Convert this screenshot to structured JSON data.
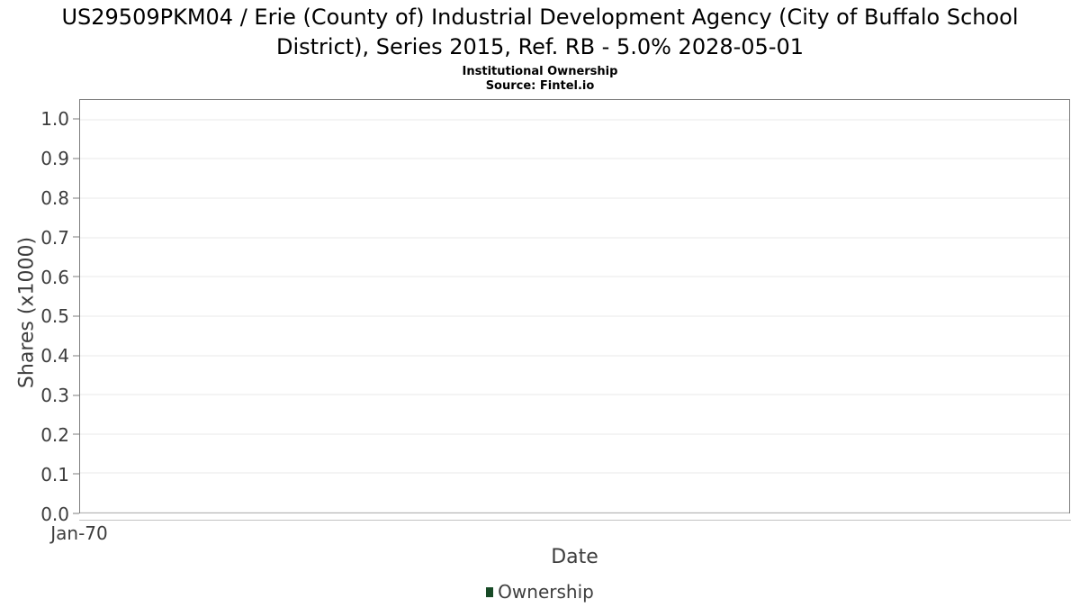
{
  "header": {
    "title": "US29509PKM04 / Erie (County of) Industrial Development Agency (City of Buffalo School District), Series 2015, Ref. RB - 5.0% 2028-05-01",
    "subtitle": "Institutional Ownership",
    "source": "Source: Fintel.io"
  },
  "chart_data": {
    "type": "bar",
    "title": "US29509PKM04 / Erie (County of) Industrial Development Agency (City of Buffalo School District), Series 2015, Ref. RB - 5.0% 2028-05-01",
    "subtitle": "Institutional Ownership",
    "source_note": "Source: Fintel.io",
    "xlabel": "Date",
    "ylabel": "Shares (x1000)",
    "ylim": [
      0,
      1.05
    ],
    "grid": "horizontal",
    "y_ticks": [
      {
        "value": 0.0,
        "label": "0.0"
      },
      {
        "value": 0.1,
        "label": "0.1"
      },
      {
        "value": 0.2,
        "label": "0.2"
      },
      {
        "value": 0.3,
        "label": "0.3"
      },
      {
        "value": 0.4,
        "label": "0.4"
      },
      {
        "value": 0.5,
        "label": "0.5"
      },
      {
        "value": 0.6,
        "label": "0.6"
      },
      {
        "value": 0.7,
        "label": "0.7"
      },
      {
        "value": 0.8,
        "label": "0.8"
      },
      {
        "value": 0.9,
        "label": "0.9"
      },
      {
        "value": 1.0,
        "label": "1.0"
      }
    ],
    "x_ticks": [
      {
        "position": 0,
        "label": "Jan-70"
      }
    ],
    "series": [
      {
        "name": "Ownership",
        "color": "#174a26",
        "points": []
      }
    ],
    "legend": {
      "position": "bottom-center",
      "items": [
        {
          "label": "Ownership",
          "color": "#174a26"
        }
      ]
    },
    "colors": {
      "accent_green": "#174a26",
      "plot_border": "#7d7d7d",
      "grid_line": "#e8e8e8",
      "axis_line": "#c4c4c4",
      "axis_text": "#3d3d3d",
      "title_text": "#000000"
    }
  }
}
